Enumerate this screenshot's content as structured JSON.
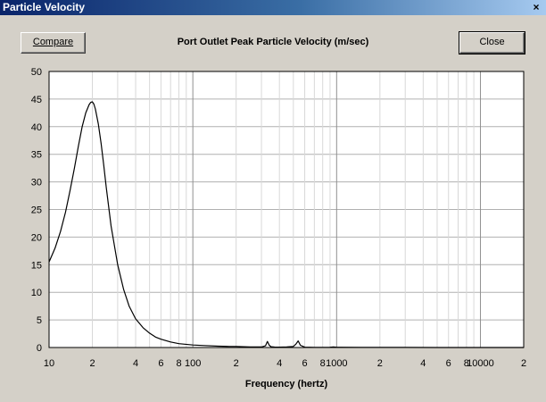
{
  "window": {
    "title": "Particle Velocity",
    "close_glyph": "×"
  },
  "toolbar": {
    "compare_label": "Compare",
    "close_label": "Close"
  },
  "chart_data": {
    "type": "line",
    "title": "Port Outlet Peak Particle Velocity (m/sec)",
    "xlabel": "Frequency (hertz)",
    "ylabel": "",
    "x_scale": "log",
    "xlim": [
      10,
      20000
    ],
    "ylim": [
      0,
      50
    ],
    "grid": true,
    "y_ticks": [
      0,
      5,
      10,
      15,
      20,
      25,
      30,
      35,
      40,
      45,
      50
    ],
    "x_tick_labels": [
      {
        "x": 10,
        "label": "10"
      },
      {
        "x": 20,
        "label": "2"
      },
      {
        "x": 40,
        "label": "4"
      },
      {
        "x": 60,
        "label": "6"
      },
      {
        "x": 80,
        "label": "8"
      },
      {
        "x": 100,
        "label": "100"
      },
      {
        "x": 200,
        "label": "2"
      },
      {
        "x": 400,
        "label": "4"
      },
      {
        "x": 600,
        "label": "6"
      },
      {
        "x": 800,
        "label": "8"
      },
      {
        "x": 1000,
        "label": "1000"
      },
      {
        "x": 2000,
        "label": "2"
      },
      {
        "x": 4000,
        "label": "4"
      },
      {
        "x": 6000,
        "label": "6"
      },
      {
        "x": 8000,
        "label": "8"
      },
      {
        "x": 10000,
        "label": "10000"
      },
      {
        "x": 20000,
        "label": "2"
      }
    ],
    "series": [
      {
        "name": "",
        "color": "#000000",
        "x": [
          10,
          11,
          12,
          13,
          14,
          15,
          16,
          17,
          18,
          19,
          19.5,
          20,
          20.5,
          21,
          22,
          23,
          24,
          25,
          27,
          30,
          33,
          36,
          40,
          45,
          50,
          55,
          60,
          70,
          80,
          100,
          120,
          150,
          180,
          200,
          250,
          300,
          320,
          330,
          340,
          350,
          370,
          400,
          450,
          500,
          520,
          540,
          560,
          600,
          700,
          800,
          900,
          950,
          1000,
          1500,
          2000,
          3000,
          5000,
          10000,
          20000
        ],
        "y": [
          15.5,
          18,
          21,
          24.5,
          28.5,
          32.5,
          36.5,
          40,
          42.5,
          44,
          44.4,
          44.5,
          44.1,
          43.2,
          40.5,
          37,
          33,
          29,
          22,
          15,
          10.5,
          7.5,
          5.2,
          3.6,
          2.6,
          1.9,
          1.5,
          1.0,
          0.7,
          0.45,
          0.35,
          0.25,
          0.2,
          0.2,
          0.12,
          0.1,
          0.3,
          1.1,
          0.4,
          0.15,
          0.08,
          0.07,
          0.1,
          0.2,
          0.6,
          1.2,
          0.4,
          0.06,
          0.04,
          0.03,
          0.05,
          0.12,
          0.05,
          0.02,
          0.01,
          0.01,
          0.0,
          0.0,
          0.0
        ]
      }
    ]
  }
}
